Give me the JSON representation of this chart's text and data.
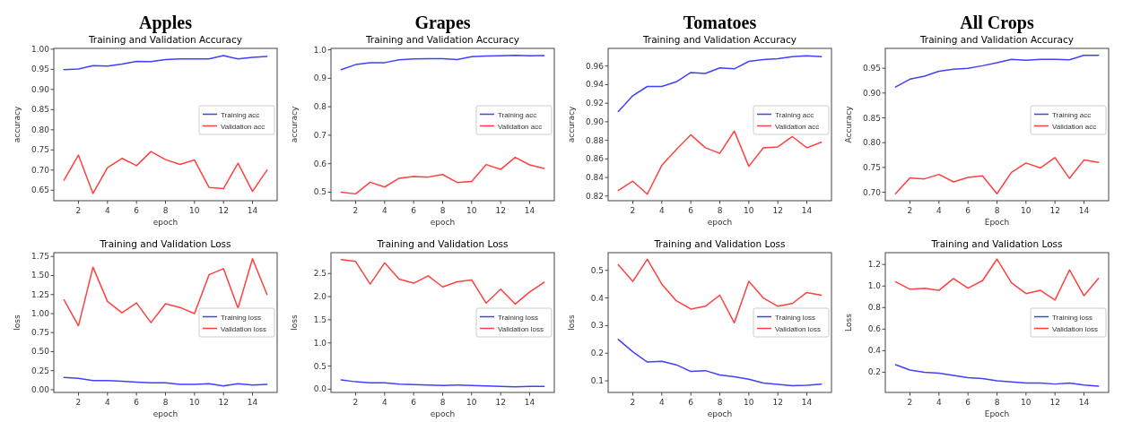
{
  "chart_data": [
    {
      "type": "line",
      "title": "Apples",
      "subtitle": "Training and Validation Accuracy",
      "xlabel": "epoch",
      "ylabel": "accuracy",
      "x": [
        1,
        2,
        3,
        4,
        5,
        6,
        7,
        8,
        9,
        10,
        11,
        12,
        13,
        14,
        15
      ],
      "xlim": [
        0.3,
        15.7
      ],
      "xticks": [
        2,
        4,
        6,
        8,
        10,
        12,
        14
      ],
      "ylim": [
        0.624,
        1.002
      ],
      "yticks": [
        0.65,
        {
          "value": 0.7,
          "label": "0.70"
        },
        0.75,
        {
          "value": 0.8,
          "label": "0.80"
        },
        0.85,
        {
          "value": 0.9,
          "label": "0.90"
        },
        0.95,
        {
          "value": 1,
          "label": "1.00"
        }
      ],
      "legend": "right",
      "series": [
        {
          "name": "Training acc",
          "color": "#4040ff",
          "values": [
            0.949,
            0.951,
            0.959,
            0.958,
            0.963,
            0.97,
            0.969,
            0.974,
            0.976,
            0.976,
            0.976,
            0.984,
            0.976,
            0.98,
            0.982
          ]
        },
        {
          "name": "Validation acc",
          "color": "#ff4040",
          "values": [
            0.675,
            0.737,
            0.642,
            0.706,
            0.729,
            0.711,
            0.746,
            0.726,
            0.714,
            0.725,
            0.657,
            0.654,
            0.717,
            0.647,
            0.7
          ]
        }
      ]
    },
    {
      "type": "line",
      "title": "Grapes",
      "subtitle": "Training and Validation Accuracy",
      "xlabel": "epoch",
      "ylabel": "accuracy",
      "x": [
        1,
        2,
        3,
        4,
        5,
        6,
        7,
        8,
        9,
        10,
        11,
        12,
        13,
        14,
        15
      ],
      "xlim": [
        0.3,
        15.7
      ],
      "xticks": [
        2,
        4,
        6,
        8,
        10,
        12,
        14
      ],
      "ylim": [
        0.47,
        1.005
      ],
      "yticks": [
        0.5,
        0.6,
        0.7,
        0.8,
        0.9,
        {
          "value": 1,
          "label": "1.0"
        }
      ],
      "legend": "right",
      "series": [
        {
          "name": "Training acc",
          "color": "#4040ff",
          "values": [
            0.93,
            0.948,
            0.955,
            0.955,
            0.965,
            0.968,
            0.969,
            0.969,
            0.966,
            0.976,
            0.978,
            0.979,
            0.981,
            0.979,
            0.98
          ]
        },
        {
          "name": "Validation acc",
          "color": "#ff4040",
          "values": [
            0.5,
            0.494,
            0.535,
            0.518,
            0.549,
            0.555,
            0.553,
            0.562,
            0.534,
            0.538,
            0.597,
            0.58,
            0.622,
            0.596,
            0.583
          ]
        }
      ]
    },
    {
      "type": "line",
      "title": "Tomatoes",
      "subtitle": "Training and Validation Accuracy",
      "xlabel": "epoch",
      "ylabel": "accuracy",
      "x": [
        1,
        2,
        3,
        4,
        5,
        6,
        7,
        8,
        9,
        10,
        11,
        12,
        13,
        14,
        15
      ],
      "xlim": [
        0.3,
        15.7
      ],
      "xticks": [
        2,
        4,
        6,
        8,
        10,
        12,
        14
      ],
      "ylim": [
        0.815,
        0.979
      ],
      "yticks": [
        0.82,
        0.84,
        0.86,
        0.88,
        {
          "value": 0.9,
          "label": "0.90"
        },
        0.92,
        0.94,
        0.96
      ],
      "legend": "right",
      "series": [
        {
          "name": "Training acc",
          "color": "#4040ff",
          "values": [
            0.911,
            0.928,
            0.938,
            0.938,
            0.943,
            0.953,
            0.952,
            0.958,
            0.957,
            0.965,
            0.967,
            0.968,
            0.97,
            0.971,
            0.97
          ]
        },
        {
          "name": "Validation acc",
          "color": "#ff4040",
          "values": [
            0.826,
            0.836,
            0.822,
            0.853,
            0.87,
            0.886,
            0.872,
            0.866,
            0.89,
            0.852,
            0.872,
            0.873,
            0.884,
            0.872,
            0.878
          ]
        }
      ]
    },
    {
      "type": "line",
      "title": "All Crops",
      "subtitle": "Training and Validation Accuracy",
      "xlabel": "Epoch",
      "ylabel": "Accuracy",
      "x": [
        1,
        2,
        3,
        4,
        5,
        6,
        7,
        8,
        9,
        10,
        11,
        12,
        13,
        14,
        15
      ],
      "xlim": [
        0.3,
        15.7
      ],
      "xticks": [
        2,
        4,
        6,
        8,
        10,
        12,
        14
      ],
      "ylim": [
        0.683,
        0.99
      ],
      "yticks": [
        {
          "value": 0.7,
          "label": "0.70"
        },
        0.75,
        {
          "value": 0.8,
          "label": "0.80"
        },
        0.85,
        {
          "value": 0.9,
          "label": "0.90"
        },
        0.95
      ],
      "legend": "right",
      "series": [
        {
          "name": "Training acc",
          "color": "#4040ff",
          "values": [
            0.912,
            0.928,
            0.934,
            0.944,
            0.948,
            0.95,
            0.955,
            0.961,
            0.968,
            0.966,
            0.968,
            0.968,
            0.967,
            0.976,
            0.976
          ]
        },
        {
          "name": "Validation acc",
          "color": "#ff4040",
          "values": [
            0.697,
            0.729,
            0.727,
            0.736,
            0.721,
            0.73,
            0.733,
            0.697,
            0.74,
            0.759,
            0.749,
            0.77,
            0.728,
            0.765,
            0.76
          ]
        }
      ]
    },
    {
      "type": "line",
      "title": "Training and Validation Loss",
      "xlabel": "epoch",
      "ylabel": "loss",
      "x": [
        1,
        2,
        3,
        4,
        5,
        6,
        7,
        8,
        9,
        10,
        11,
        12,
        13,
        14,
        15
      ],
      "xlim": [
        0.3,
        15.7
      ],
      "xticks": [
        2,
        4,
        6,
        8,
        10,
        12,
        14
      ],
      "ylim": [
        -0.036,
        1.8
      ],
      "yticks": [
        {
          "value": 0,
          "label": "0.00"
        },
        0.25,
        {
          "value": 0.5,
          "label": "0.50"
        },
        0.75,
        {
          "value": 1,
          "label": "1.00"
        },
        1.25,
        {
          "value": 1.5,
          "label": "1.50"
        },
        1.75
      ],
      "legend": "right",
      "series": [
        {
          "name": "Training loss",
          "color": "#4040ff",
          "values": [
            0.16,
            0.15,
            0.12,
            0.12,
            0.11,
            0.1,
            0.09,
            0.09,
            0.07,
            0.07,
            0.08,
            0.05,
            0.08,
            0.06,
            0.07
          ]
        },
        {
          "name": "Validation loss",
          "color": "#ff4040",
          "values": [
            1.18,
            0.84,
            1.61,
            1.16,
            1.01,
            1.14,
            0.88,
            1.13,
            1.08,
            1.0,
            1.51,
            1.59,
            1.07,
            1.72,
            1.25
          ]
        }
      ]
    },
    {
      "type": "line",
      "title": "Training and Validation Loss",
      "xlabel": "epoch",
      "ylabel": "loss",
      "x": [
        1,
        2,
        3,
        4,
        5,
        6,
        7,
        8,
        9,
        10,
        11,
        12,
        13,
        14,
        15
      ],
      "xlim": [
        0.3,
        15.7
      ],
      "xticks": [
        2,
        4,
        6,
        8,
        10,
        12,
        14
      ],
      "ylim": [
        -0.07,
        2.95
      ],
      "yticks": [
        {
          "value": 0,
          "label": "0.0"
        },
        0.5,
        {
          "value": 1,
          "label": "1.0"
        },
        1.5,
        {
          "value": 2,
          "label": "2.0"
        },
        2.5
      ],
      "legend": "right",
      "series": [
        {
          "name": "Training loss",
          "color": "#4040ff",
          "values": [
            0.2,
            0.16,
            0.14,
            0.14,
            0.11,
            0.1,
            0.09,
            0.08,
            0.09,
            0.08,
            0.07,
            0.06,
            0.05,
            0.06,
            0.06
          ]
        },
        {
          "name": "Validation loss",
          "color": "#ff4040",
          "values": [
            2.8,
            2.76,
            2.27,
            2.73,
            2.38,
            2.29,
            2.45,
            2.21,
            2.32,
            2.36,
            1.86,
            2.16,
            1.84,
            2.1,
            2.31
          ]
        }
      ]
    },
    {
      "type": "line",
      "title": "Training and Validation Loss",
      "xlabel": "epoch",
      "ylabel": "loss",
      "x": [
        1,
        2,
        3,
        4,
        5,
        6,
        7,
        8,
        9,
        10,
        11,
        12,
        13,
        14,
        15
      ],
      "xlim": [
        0.3,
        15.7
      ],
      "xticks": [
        2,
        4,
        6,
        8,
        10,
        12,
        14
      ],
      "ylim": [
        0.058,
        0.564
      ],
      "yticks": [
        0.1,
        0.2,
        0.3,
        0.4,
        0.5
      ],
      "legend": "right",
      "series": [
        {
          "name": "Training loss",
          "color": "#4040ff",
          "values": [
            0.25,
            0.205,
            0.168,
            0.171,
            0.158,
            0.134,
            0.137,
            0.121,
            0.115,
            0.106,
            0.092,
            0.087,
            0.082,
            0.084,
            0.088
          ]
        },
        {
          "name": "Validation loss",
          "color": "#ff4040",
          "values": [
            0.52,
            0.46,
            0.54,
            0.45,
            0.39,
            0.36,
            0.37,
            0.41,
            0.31,
            0.46,
            0.4,
            0.37,
            0.38,
            0.42,
            0.41
          ]
        }
      ]
    },
    {
      "type": "line",
      "title": "Training and Validation Loss",
      "xlabel": "Epoch",
      "ylabel": "Loss",
      "x": [
        1,
        2,
        3,
        4,
        5,
        6,
        7,
        8,
        9,
        10,
        11,
        12,
        13,
        14,
        15
      ],
      "xlim": [
        0.3,
        15.7
      ],
      "xticks": [
        2,
        4,
        6,
        8,
        10,
        12,
        14
      ],
      "ylim": [
        0.012,
        1.31
      ],
      "yticks": [
        0.2,
        0.4,
        0.6,
        0.8,
        {
          "value": 1,
          "label": "1.0"
        },
        1.2
      ],
      "legend": "right",
      "series": [
        {
          "name": "Training loss",
          "color": "#4040ff",
          "values": [
            0.27,
            0.22,
            0.2,
            0.19,
            0.17,
            0.15,
            0.14,
            0.12,
            0.11,
            0.1,
            0.1,
            0.09,
            0.1,
            0.08,
            0.07
          ]
        },
        {
          "name": "Validation loss",
          "color": "#ff4040",
          "values": [
            1.04,
            0.97,
            0.98,
            0.96,
            1.07,
            0.98,
            1.05,
            1.25,
            1.03,
            0.93,
            0.96,
            0.87,
            1.15,
            0.91,
            1.07
          ]
        }
      ]
    }
  ]
}
